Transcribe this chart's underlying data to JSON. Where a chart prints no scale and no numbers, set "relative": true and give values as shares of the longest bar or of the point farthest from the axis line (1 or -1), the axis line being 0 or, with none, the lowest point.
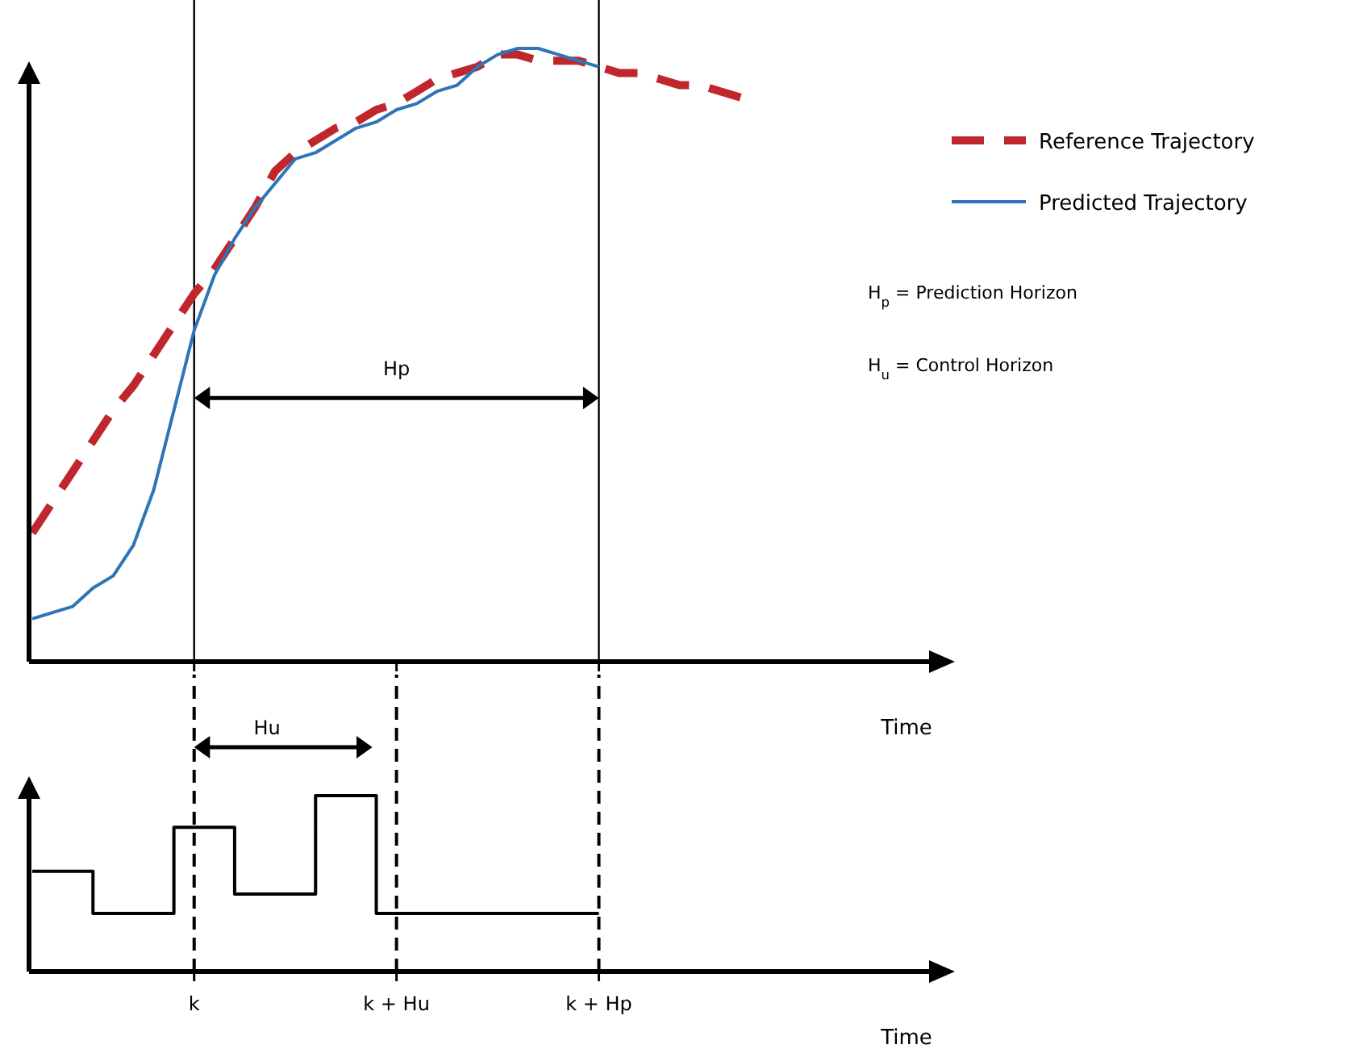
{
  "chart_data": [
    {
      "type": "line",
      "relative": true,
      "xlabel": "Time",
      "tick_labels": false,
      "legend": "top right",
      "categories": [
        null,
        null,
        null,
        null,
        null,
        null,
        null,
        null,
        "k",
        null,
        null,
        null,
        null,
        null,
        null,
        null,
        null,
        null,
        "k + Hu",
        null,
        null,
        null,
        null,
        null,
        null,
        null,
        null,
        null,
        "k + Hp",
        null,
        null,
        null,
        null,
        null,
        null,
        null,
        null,
        null,
        null,
        null,
        null,
        null,
        null,
        null,
        null
      ],
      "series": [
        {
          "name": "Reference Trajectory",
          "color": "#c0272d",
          "line_style": "dashed",
          "values": [
            0.21,
            0.26,
            0.31,
            0.36,
            0.41,
            0.45,
            0.5,
            0.55,
            0.6,
            0.64,
            0.69,
            0.74,
            0.8,
            0.83,
            0.85,
            0.87,
            0.88,
            0.9,
            0.91,
            0.93,
            0.95,
            0.96,
            0.97,
            0.99,
            0.99,
            0.98,
            0.98,
            0.98,
            0.97,
            0.96,
            0.96,
            0.95,
            0.94,
            0.94,
            0.93,
            0.92,
            null,
            null,
            null,
            null,
            null,
            null,
            null,
            null,
            null
          ]
        },
        {
          "name": "Predicted Trajectory",
          "color": "#2e75b6",
          "line_style": "solid",
          "values": [
            0.07,
            0.08,
            0.09,
            0.12,
            0.14,
            0.19,
            0.28,
            0.41,
            0.54,
            0.63,
            0.69,
            0.74,
            0.78,
            0.82,
            0.83,
            0.85,
            0.87,
            0.88,
            0.9,
            0.91,
            0.93,
            0.94,
            0.97,
            0.99,
            1,
            1,
            0.99,
            0.98,
            0.97,
            null,
            null,
            null,
            null,
            null,
            null,
            null,
            null,
            null,
            null,
            null,
            null,
            null,
            null,
            null,
            null
          ]
        }
      ],
      "ref_lines": [
        {
          "axis": "x",
          "value": "k",
          "line_style": "solid",
          "color": "#000000"
        },
        {
          "axis": "x",
          "value": "k + Hp",
          "line_style": "solid",
          "color": "#000000"
        }
      ],
      "annotations": [
        "Hp",
        "H$_{p}$ = Prediction Horizon",
        "H$_{u}$ = Control Horizon"
      ]
    },
    {
      "type": "step",
      "relative": true,
      "xlabel": "Time",
      "tick_labels": "x",
      "categories": [
        null,
        null,
        null,
        null,
        null,
        null,
        null,
        null,
        "k",
        null,
        null,
        null,
        null,
        null,
        null,
        null,
        null,
        null,
        "k + Hu",
        null,
        null,
        null,
        null,
        null,
        null,
        null,
        null,
        null,
        "k + Hp",
        null,
        null,
        null,
        null,
        null,
        null,
        null,
        null,
        null,
        null,
        null,
        null,
        null,
        null,
        null,
        null
      ],
      "series": [
        {
          "color": "#000000",
          "values": [
            0.57,
            0.57,
            0.57,
            0.33,
            0.33,
            0.33,
            0.33,
            0.82,
            0.82,
            0.82,
            0.44,
            0.44,
            0.44,
            0.44,
            1,
            1,
            1,
            0.33,
            0.33,
            0.33,
            0.33,
            0.33,
            0.33,
            0.33,
            0.33,
            0.33,
            0.33,
            0.33,
            0.33,
            null,
            null,
            null,
            null,
            null,
            null,
            null,
            null,
            null,
            null,
            null,
            null,
            null,
            null,
            null,
            null
          ]
        }
      ],
      "ref_lines": [
        {
          "axis": "x",
          "value": "k",
          "line_style": "dashed",
          "color": "#000000"
        },
        {
          "axis": "x",
          "value": "k + Hu",
          "line_style": "dashed",
          "color": "#000000"
        },
        {
          "axis": "x",
          "value": "k + Hp",
          "line_style": "dashed",
          "color": "#000000"
        }
      ],
      "annotations": [
        "Hu"
      ]
    }
  ]
}
